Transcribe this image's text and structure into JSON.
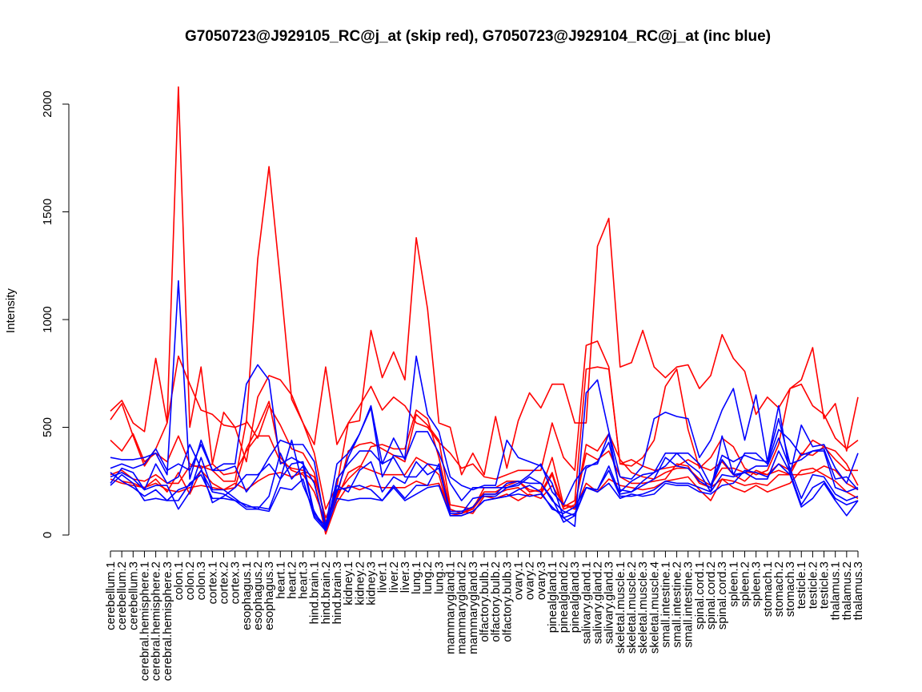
{
  "chart_data": {
    "type": "line",
    "title": "G7050723@J929105_RC@j_at (skip red), G7050723@J929104_RC@j_at (inc blue)",
    "xlabel": "",
    "ylabel": "Intensity",
    "ylim": [
      0,
      2000
    ],
    "yticks": [
      0,
      500,
      1000,
      1500,
      2000
    ],
    "grid": false,
    "categories": [
      "cerebellum.1",
      "cerebellum.2",
      "cerebellum.3",
      "cerebral.hemisphere.1",
      "cerebral.hemisphere.2",
      "cerebral.hemisphere.3",
      "colon.1",
      "colon.2",
      "colon.3",
      "cortex.1",
      "cortex.2",
      "cortex.3",
      "esophagus.1",
      "esophagus.2",
      "esophagus.3",
      "heart.1",
      "heart.2",
      "heart.3",
      "hind.brain.1",
      "hind.brain.2",
      "hind.brain.3",
      "kidney.1",
      "kidney.2",
      "kidney.3",
      "liver.1",
      "liver.2",
      "liver.3",
      "lung.1",
      "lung.2",
      "lung.3",
      "mammarygland.1",
      "mammarygland.2",
      "mammarygland.3",
      "olfactory.bulb.1",
      "olfactory.bulb.2",
      "olfactory.bulb.3",
      "ovary.1",
      "ovary.2",
      "ovary.3",
      "pinealgland.1",
      "pinealgland.2",
      "pinealgland.3",
      "salivary.gland.1",
      "salivary.gland.2",
      "salivary.gland.3",
      "skeletal.muscle.1",
      "skeletal.muscle.2",
      "skeletal.muscle.3",
      "skeletal.muscle.4",
      "small.intestine.1",
      "small.intestine.2",
      "small.intestine.3",
      "spinal.cord.1",
      "spinal.cord.2",
      "spinal.cord.3",
      "spleen.1",
      "spleen.2",
      "spleen.3",
      "stomach.1",
      "stomach.2",
      "stomach.3",
      "testicle.1",
      "testicle.2",
      "testicle.3",
      "thalamus.1",
      "thalamus.2",
      "thalamus.3"
    ],
    "series": [
      {
        "color": "#ff0000",
        "values": [
          575,
          625,
          520,
          480,
          820,
          520,
          2080,
          500,
          780,
          330,
          570,
          500,
          520,
          1280,
          1710,
          1180,
          630,
          520,
          420,
          780,
          420,
          520,
          530,
          950,
          730,
          850,
          720,
          1380,
          1050,
          520,
          500,
          280,
          380,
          280,
          550,
          310,
          530,
          660,
          590,
          700,
          700,
          520,
          520,
          1340,
          1470,
          780,
          800,
          950,
          780,
          730,
          780,
          790,
          680,
          740,
          930,
          820,
          760,
          560,
          640,
          590,
          680,
          720,
          870,
          540,
          610,
          390,
          640
        ]
      },
      {
        "color": "#ff0000",
        "values": [
          535,
          610,
          460,
          320,
          400,
          520,
          830,
          700,
          580,
          560,
          510,
          500,
          340,
          640,
          740,
          720,
          650,
          520,
          380,
          120,
          230,
          520,
          600,
          690,
          580,
          640,
          600,
          520,
          500,
          430,
          380,
          310,
          330,
          270,
          260,
          280,
          300,
          300,
          300,
          520,
          360,
          300,
          880,
          900,
          780,
          330,
          320,
          360,
          440,
          690,
          770,
          490,
          310,
          360,
          450,
          410,
          310,
          280,
          300,
          420,
          680,
          700,
          600,
          560,
          450,
          400,
          440
        ]
      },
      {
        "color": "#ff0000",
        "values": [
          440,
          390,
          470,
          340,
          380,
          340,
          460,
          330,
          310,
          330,
          280,
          290,
          390,
          460,
          460,
          340,
          310,
          300,
          270,
          80,
          190,
          260,
          310,
          410,
          420,
          400,
          400,
          580,
          540,
          360,
          120,
          100,
          130,
          200,
          200,
          230,
          250,
          210,
          200,
          290,
          130,
          160,
          770,
          780,
          770,
          330,
          350,
          320,
          300,
          310,
          320,
          350,
          320,
          300,
          340,
          280,
          250,
          300,
          280,
          330,
          300,
          370,
          440,
          410,
          390,
          330,
          230
        ]
      },
      {
        "color": "#ff0000",
        "values": [
          280,
          300,
          260,
          250,
          280,
          240,
          240,
          320,
          320,
          300,
          250,
          250,
          530,
          450,
          600,
          510,
          400,
          380,
          290,
          60,
          180,
          390,
          420,
          430,
          400,
          370,
          340,
          560,
          510,
          440,
          140,
          130,
          120,
          220,
          220,
          250,
          250,
          200,
          210,
          360,
          140,
          130,
          420,
          390,
          470,
          350,
          290,
          270,
          260,
          290,
          310,
          310,
          260,
          230,
          310,
          310,
          290,
          290,
          280,
          300,
          280,
          380,
          370,
          410,
          350,
          300,
          300
        ]
      },
      {
        "color": "#ff0000",
        "values": [
          260,
          240,
          230,
          220,
          240,
          210,
          200,
          220,
          230,
          220,
          210,
          220,
          400,
          500,
          620,
          360,
          300,
          280,
          200,
          60,
          170,
          290,
          320,
          300,
          280,
          280,
          280,
          360,
          330,
          280,
          90,
          100,
          120,
          190,
          190,
          210,
          220,
          180,
          190,
          280,
          120,
          140,
          380,
          350,
          390,
          270,
          240,
          240,
          250,
          260,
          330,
          320,
          240,
          220,
          260,
          250,
          230,
          240,
          230,
          280,
          280,
          280,
          290,
          320,
          300,
          240,
          210
        ]
      },
      {
        "color": "#ff0000",
        "values": [
          290,
          250,
          240,
          220,
          260,
          200,
          290,
          190,
          300,
          240,
          210,
          240,
          210,
          250,
          280,
          290,
          270,
          290,
          250,
          5,
          150,
          230,
          210,
          230,
          220,
          220,
          220,
          250,
          230,
          240,
          110,
          110,
          100,
          180,
          170,
          190,
          160,
          190,
          170,
          230,
          140,
          120,
          240,
          200,
          260,
          230,
          220,
          210,
          220,
          250,
          260,
          270,
          210,
          160,
          260,
          220,
          200,
          230,
          200,
          220,
          240,
          300,
          310,
          280,
          250,
          200,
          170
        ]
      },
      {
        "color": "#0000ff",
        "values": [
          360,
          350,
          350,
          360,
          380,
          280,
          1180,
          260,
          440,
          300,
          330,
          330,
          700,
          790,
          720,
          330,
          360,
          330,
          240,
          30,
          200,
          360,
          470,
          590,
          270,
          370,
          360,
          830,
          560,
          480,
          270,
          230,
          210,
          230,
          230,
          440,
          360,
          340,
          320,
          240,
          80,
          40,
          660,
          720,
          480,
          270,
          260,
          320,
          540,
          570,
          550,
          540,
          360,
          440,
          580,
          680,
          440,
          650,
          340,
          600,
          280,
          510,
          410,
          420,
          310,
          240,
          380
        ]
      },
      {
        "color": "#0000ff",
        "values": [
          310,
          330,
          310,
          330,
          400,
          300,
          330,
          300,
          420,
          300,
          300,
          320,
          200,
          270,
          360,
          440,
          420,
          420,
          340,
          40,
          330,
          380,
          470,
          600,
          330,
          450,
          350,
          480,
          480,
          380,
          240,
          160,
          220,
          220,
          220,
          220,
          240,
          280,
          330,
          200,
          140,
          250,
          320,
          330,
          470,
          200,
          250,
          280,
          290,
          380,
          380,
          330,
          290,
          200,
          460,
          280,
          380,
          380,
          330,
          490,
          440,
          370,
          390,
          400,
          260,
          270,
          210
        ]
      },
      {
        "color": "#0000ff",
        "values": [
          240,
          310,
          290,
          210,
          330,
          240,
          270,
          420,
          310,
          150,
          180,
          220,
          280,
          280,
          330,
          260,
          440,
          230,
          110,
          20,
          260,
          330,
          390,
          390,
          330,
          360,
          270,
          270,
          330,
          320,
          100,
          100,
          170,
          180,
          180,
          220,
          230,
          270,
          240,
          170,
          60,
          90,
          310,
          340,
          430,
          210,
          200,
          250,
          290,
          320,
          380,
          380,
          330,
          230,
          370,
          340,
          370,
          350,
          340,
          540,
          330,
          350,
          390,
          390,
          220,
          200,
          220
        ]
      },
      {
        "color": "#0000ff",
        "values": [
          270,
          290,
          260,
          210,
          230,
          230,
          120,
          200,
          360,
          210,
          210,
          170,
          130,
          130,
          120,
          260,
          330,
          340,
          100,
          40,
          230,
          200,
          300,
          340,
          200,
          270,
          240,
          340,
          280,
          310,
          110,
          110,
          130,
          190,
          190,
          240,
          250,
          240,
          240,
          160,
          110,
          90,
          220,
          210,
          320,
          190,
          200,
          230,
          260,
          360,
          320,
          310,
          250,
          220,
          350,
          280,
          290,
          320,
          320,
          450,
          310,
          170,
          280,
          270,
          190,
          160,
          180
        ]
      },
      {
        "color": "#0000ff",
        "values": [
          230,
          280,
          240,
          160,
          170,
          160,
          210,
          230,
          300,
          200,
          190,
          160,
          140,
          120,
          180,
          380,
          260,
          320,
          90,
          30,
          210,
          220,
          230,
          210,
          160,
          230,
          170,
          230,
          230,
          330,
          90,
          90,
          110,
          160,
          170,
          180,
          210,
          230,
          200,
          120,
          100,
          130,
          220,
          210,
          300,
          180,
          180,
          190,
          210,
          250,
          240,
          240,
          220,
          200,
          280,
          270,
          290,
          260,
          260,
          390,
          290,
          140,
          220,
          250,
          170,
          140,
          160
        ]
      },
      {
        "color": "#0000ff",
        "values": [
          290,
          250,
          220,
          180,
          210,
          160,
          160,
          240,
          280,
          170,
          170,
          160,
          120,
          120,
          110,
          220,
          210,
          260,
          80,
          20,
          170,
          160,
          170,
          170,
          160,
          220,
          160,
          190,
          220,
          230,
          90,
          90,
          110,
          160,
          170,
          180,
          190,
          180,
          190,
          130,
          80,
          100,
          220,
          200,
          240,
          170,
          190,
          180,
          190,
          240,
          230,
          230,
          200,
          190,
          230,
          240,
          300,
          290,
          270,
          330,
          280,
          130,
          170,
          240,
          160,
          90,
          160
        ]
      }
    ]
  }
}
